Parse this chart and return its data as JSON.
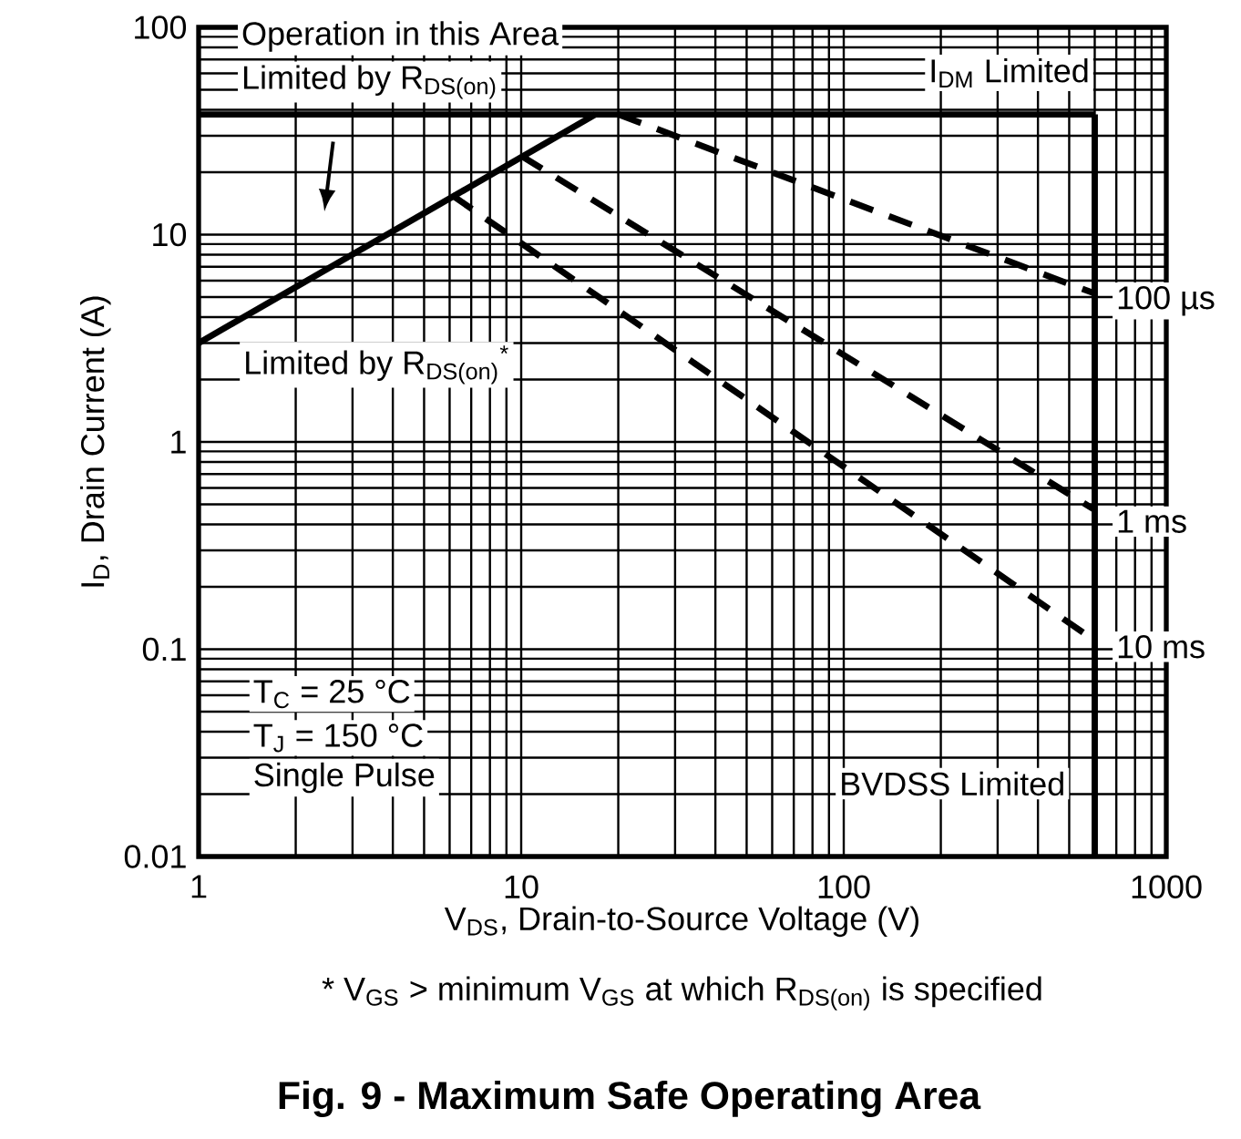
{
  "chart_data": {
    "type": "line",
    "title": "Fig. 9 - Maximum Safe Operating Area",
    "xlabel": "V$_{DS}$, Drain-to-Source Voltage (V)",
    "ylabel": "I$_{D}$, Drain Current (A)",
    "log": "xy",
    "xlim": [
      1,
      1000
    ],
    "ylim": [
      0.01,
      100
    ],
    "xticks": [
      1,
      10,
      100,
      1000
    ],
    "yticks": [
      0.01,
      0.1,
      1,
      10,
      100
    ],
    "grid": true,
    "marker": "none",
    "series": [
      {
        "name": "Limited by R$_{DS(on)}$$^{*}$",
        "color": "#000000",
        "line_style": "solid",
        "x": [
          1,
          17
        ],
        "values": [
          3,
          38
        ]
      },
      {
        "name": "I$_{DM}$ Limited",
        "color": "#000000",
        "line_style": "solid",
        "x": [
          1,
          600
        ],
        "values": [
          38,
          38
        ]
      },
      {
        "name": "BVDSS Limited",
        "color": "#000000",
        "line_style": "solid",
        "x": [
          600,
          600
        ],
        "values": [
          38,
          0.01
        ]
      },
      {
        "name": "100 µs",
        "color": "#000000",
        "line_style": "dashed",
        "x": [
          20,
          600
        ],
        "values": [
          38,
          5.2
        ]
      },
      {
        "name": "1 ms",
        "color": "#000000",
        "line_style": "dashed",
        "x": [
          10,
          600
        ],
        "values": [
          24,
          0.47
        ]
      },
      {
        "name": "10 ms",
        "color": "#000000",
        "line_style": "dashed",
        "x": [
          6.1,
          600
        ],
        "values": [
          15.5,
          0.11
        ]
      }
    ],
    "annotations": [
      "Operation in this Area",
      "Limited by R$_{DS(on)}$",
      "T$_{C}$ = 25 °C",
      "T$_{J}$ = 150 °C",
      "Single Pulse",
      "* V$_{GS}$ > minimum V$_{GS}$ at which R$_{DS(on)}$ is specified"
    ]
  }
}
